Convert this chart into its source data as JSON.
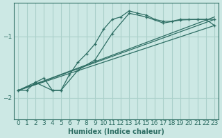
{
  "xlabel": "Humidex (Indice chaleur)",
  "ylabel": "",
  "bg_color": "#cce8e4",
  "line_color": "#2e6e64",
  "grid_color": "#aad0ca",
  "xlim": [
    -0.5,
    23.5
  ],
  "ylim": [
    -2.35,
    -0.45
  ],
  "yticks": [
    -2,
    -1
  ],
  "xticks": [
    0,
    1,
    2,
    3,
    4,
    5,
    6,
    7,
    8,
    9,
    10,
    11,
    12,
    13,
    14,
    15,
    16,
    17,
    18,
    19,
    20,
    21,
    22,
    23
  ],
  "series": [
    {
      "points": [
        [
          0,
          -1.88
        ],
        [
          1,
          -1.88
        ],
        [
          2,
          -1.75
        ],
        [
          3,
          -1.68
        ],
        [
          4,
          -1.88
        ],
        [
          5,
          -1.88
        ],
        [
          6,
          -1.62
        ],
        [
          7,
          -1.42
        ],
        [
          8,
          -1.28
        ],
        [
          9,
          -1.12
        ],
        [
          10,
          -0.88
        ],
        [
          11,
          -0.72
        ],
        [
          12,
          -0.68
        ],
        [
          13,
          -0.58
        ],
        [
          14,
          -0.62
        ],
        [
          15,
          -0.65
        ],
        [
          16,
          -0.72
        ],
        [
          17,
          -0.75
        ],
        [
          18,
          -0.75
        ],
        [
          19,
          -0.72
        ],
        [
          20,
          -0.72
        ],
        [
          21,
          -0.72
        ],
        [
          22,
          -0.72
        ],
        [
          23,
          -0.82
        ]
      ],
      "marker": true
    },
    {
      "points": [
        [
          0,
          -1.88
        ],
        [
          2,
          -1.75
        ],
        [
          4,
          -1.88
        ],
        [
          5,
          -1.88
        ],
        [
          7,
          -1.55
        ],
        [
          9,
          -1.38
        ],
        [
          11,
          -0.95
        ],
        [
          13,
          -0.62
        ],
        [
          15,
          -0.68
        ],
        [
          17,
          -0.78
        ],
        [
          19,
          -0.73
        ],
        [
          21,
          -0.72
        ],
        [
          23,
          -0.72
        ]
      ],
      "marker": true
    },
    {
      "points": [
        [
          0,
          -1.88
        ],
        [
          23,
          -0.68
        ]
      ],
      "marker": false
    },
    {
      "points": [
        [
          0,
          -1.88
        ],
        [
          23,
          -0.72
        ]
      ],
      "marker": false
    },
    {
      "points": [
        [
          0,
          -1.88
        ],
        [
          23,
          -0.82
        ]
      ],
      "marker": false
    }
  ]
}
